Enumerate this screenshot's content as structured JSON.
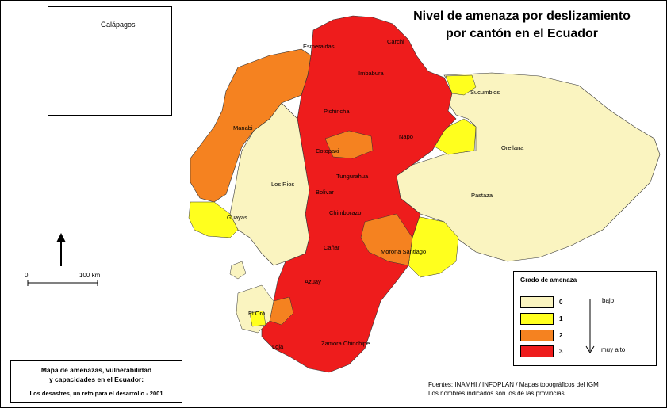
{
  "title": {
    "line1": "Nivel de amenaza por deslizamiento",
    "line2": "por cantón en el Ecuador"
  },
  "inset": {
    "label": "Galápagos"
  },
  "scale": {
    "start": "0",
    "end": "100 km"
  },
  "legend": {
    "title": "Grado de amenaza",
    "items": [
      {
        "value": "0",
        "color": "#faf4c0"
      },
      {
        "value": "1",
        "color": "#ffff1e"
      },
      {
        "value": "2",
        "color": "#f58220"
      },
      {
        "value": "3",
        "color": "#ee1c1c"
      }
    ],
    "low_label": "bajo",
    "high_label": "muy alto"
  },
  "credit": {
    "line1": "Mapa de amenazas, vulnerabilidad",
    "line2": "y capacidades en el Ecuador:",
    "line3": "Los desastres, un reto para el desarrollo - 2001"
  },
  "sources": {
    "line1": "Fuentes: INAMHI / INFOPLAN / Mapas topográficos del IGM",
    "line2": "Los nombres indicados son los de las provincias"
  },
  "provinces": {
    "carchi": "Carchi",
    "esmeraldas": "Esmeraldas",
    "imbabura": "Imbabura",
    "sucumbios": "Sucumbios",
    "pichincha": "Pichincha",
    "manabi": "Manabi",
    "napo": "Napo",
    "orellana": "Orellana",
    "cotopaxi": "Cotopaxi",
    "tungurahua": "Tungurahua",
    "los_rios": "Los Rios",
    "bolivar": "Bolivar",
    "pastaza": "Pastaza",
    "guayas": "Guayas",
    "chimborazo": "Chimborazo",
    "canar": "Cañar",
    "morona": "Morona Santiago",
    "azuay": "Azuay",
    "el_oro": "El Oro",
    "zamora": "Zamora Chinchipe",
    "loja": "Loja"
  }
}
